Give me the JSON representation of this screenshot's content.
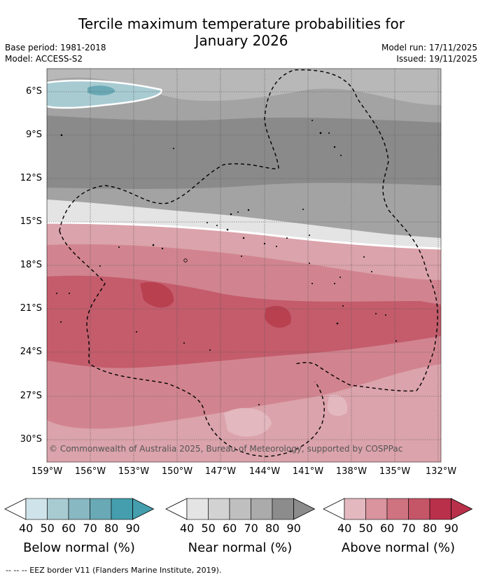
{
  "title": {
    "line1": "Tercile maximum temperature probabilities for",
    "line2": "January 2026"
  },
  "meta": {
    "base_period": "Base period: 1981-2018",
    "model": "Model: ACCESS-S2",
    "model_run": "Model run: 17/11/2025",
    "issued": "Issued: 19/11/2025"
  },
  "axes": {
    "lat_labels": [
      "6°S",
      "9°S",
      "12°S",
      "15°S",
      "18°S",
      "21°S",
      "24°S",
      "27°S",
      "30°S"
    ],
    "lon_labels": [
      "159°W",
      "156°W",
      "153°W",
      "150°W",
      "147°W",
      "144°W",
      "141°W",
      "138°W",
      "135°W",
      "132°W"
    ]
  },
  "copyright": "© Commonwealth of Australia 2025, Bureau of Meteorology, supported by COSPPac",
  "colors": {
    "below": [
      "#cfe3ea",
      "#a8cbd2",
      "#88b8c2",
      "#69a9b5",
      "#449ead"
    ],
    "near": [
      "#e4e4e4",
      "#d2d2d2",
      "#bfbfbf",
      "#ababab",
      "#8c8c8c"
    ],
    "above": [
      "#e3b8bf",
      "#d9949e",
      "#cf7381",
      "#c55667",
      "#b9304a"
    ],
    "gray_light": "#b8b8b8",
    "gray_mid": "#a3a3a3",
    "gray_dark": "#8a8a8a",
    "pink_light": "#dba3ab",
    "pink_mid": "#d1848f",
    "red_mid": "#c45c6c",
    "red_dark": "#b8404f"
  },
  "colorbars": {
    "ticks": [
      "40",
      "50",
      "60",
      "70",
      "80",
      "90"
    ],
    "below_title": "Below normal (%)",
    "near_title": "Near normal (%)",
    "above_title": "Above normal (%)"
  },
  "footnote": "-- -- -- EEZ border V11 (Flanders Marine Institute, 2019)."
}
